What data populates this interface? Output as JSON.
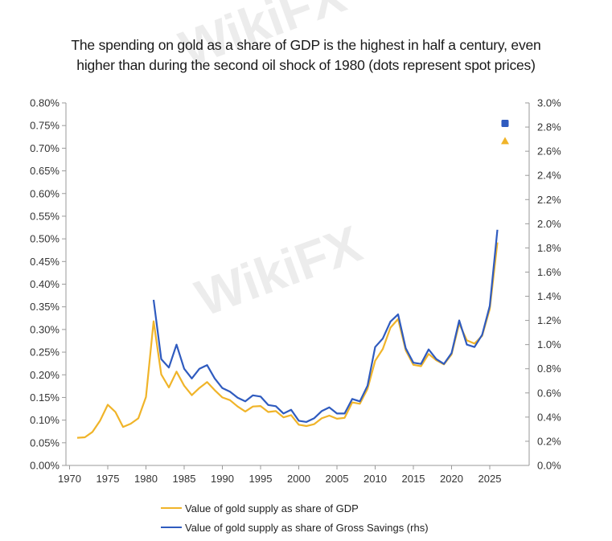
{
  "title_lines": [
    "The spending on gold as a share of GDP is the highest in half a century, even",
    "higher than during the second oil shock of 1980 (dots represent spot prices)"
  ],
  "watermark": "WikiFX",
  "chart_data": {
    "type": "line",
    "title": "The spending on gold as a share of GDP is the highest in half a century, even higher than during the second oil shock of 1980 (dots represent spot prices)",
    "x_ticks": [
      "1970",
      "1975",
      "1980",
      "1985",
      "1990",
      "1995",
      "2000",
      "2005",
      "2010",
      "2015",
      "2020",
      "2025"
    ],
    "xlim": [
      1970,
      2030
    ],
    "y_left": {
      "ylim": [
        0,
        0.8
      ],
      "ticks": [
        "0.00%",
        "0.05%",
        "0.10%",
        "0.15%",
        "0.20%",
        "0.25%",
        "0.30%",
        "0.35%",
        "0.40%",
        "0.45%",
        "0.50%",
        "0.55%",
        "0.60%",
        "0.65%",
        "0.70%",
        "0.75%",
        "0.80%"
      ]
    },
    "y_right": {
      "ylim": [
        0,
        3.0
      ],
      "ticks": [
        "0.0%",
        "0.2%",
        "0.4%",
        "0.6%",
        "0.8%",
        "1.0%",
        "1.2%",
        "1.4%",
        "1.6%",
        "1.8%",
        "2.0%",
        "2.2%",
        "2.4%",
        "2.6%",
        "2.8%",
        "3.0%"
      ]
    },
    "grid": false,
    "legend_position": "bottom",
    "series": [
      {
        "name": "Value of gold supply as share of GDP",
        "axis": "left",
        "color": "#F0B429",
        "x": [
          1971,
          1972,
          1973,
          1974,
          1975,
          1976,
          1977,
          1978,
          1979,
          1980,
          1981,
          1982,
          1983,
          1984,
          1985,
          1986,
          1987,
          1988,
          1989,
          1990,
          1991,
          1992,
          1993,
          1994,
          1995,
          1996,
          1997,
          1998,
          1999,
          2000,
          2001,
          2002,
          2003,
          2004,
          2005,
          2006,
          2007,
          2008,
          2009,
          2010,
          2011,
          2012,
          2013,
          2014,
          2015,
          2016,
          2017,
          2018,
          2019,
          2020,
          2021,
          2022,
          2023,
          2024,
          2025,
          2026
        ],
        "values": [
          0.061,
          0.062,
          0.074,
          0.099,
          0.134,
          0.118,
          0.085,
          0.092,
          0.104,
          0.151,
          0.318,
          0.201,
          0.172,
          0.207,
          0.176,
          0.155,
          0.171,
          0.184,
          0.166,
          0.15,
          0.144,
          0.13,
          0.119,
          0.13,
          0.131,
          0.118,
          0.12,
          0.106,
          0.111,
          0.09,
          0.087,
          0.091,
          0.104,
          0.11,
          0.103,
          0.105,
          0.139,
          0.136,
          0.169,
          0.231,
          0.257,
          0.304,
          0.323,
          0.254,
          0.222,
          0.219,
          0.246,
          0.232,
          0.223,
          0.245,
          0.313,
          0.276,
          0.269,
          0.286,
          0.345,
          0.492
        ]
      },
      {
        "name": "Value of gold supply as share of Gross Savings (rhs)",
        "axis": "right",
        "color": "#2F5BBF",
        "x": [
          1981,
          1982,
          1983,
          1984,
          1985,
          1986,
          1987,
          1988,
          1989,
          1990,
          1991,
          1992,
          1993,
          1994,
          1995,
          1996,
          1997,
          1998,
          1999,
          2000,
          2001,
          2002,
          2003,
          2004,
          2005,
          2006,
          2007,
          2008,
          2009,
          2010,
          2011,
          2012,
          2013,
          2014,
          2015,
          2016,
          2017,
          2018,
          2019,
          2020,
          2021,
          2022,
          2023,
          2024,
          2025,
          2026
        ],
        "values": [
          1.37,
          0.88,
          0.81,
          1.0,
          0.8,
          0.72,
          0.8,
          0.83,
          0.72,
          0.64,
          0.61,
          0.56,
          0.53,
          0.58,
          0.57,
          0.5,
          0.49,
          0.43,
          0.46,
          0.37,
          0.36,
          0.39,
          0.45,
          0.48,
          0.43,
          0.43,
          0.55,
          0.53,
          0.66,
          0.98,
          1.05,
          1.19,
          1.25,
          0.97,
          0.85,
          0.84,
          0.96,
          0.88,
          0.84,
          0.93,
          1.2,
          1.0,
          0.98,
          1.08,
          1.32,
          1.95
        ]
      }
    ],
    "spot_points": [
      {
        "series": "Value of gold supply as share of Gross Savings (rhs)",
        "axis": "right",
        "x": 2027,
        "value": 2.83,
        "marker": "square",
        "color": "#2F5BBF"
      },
      {
        "series": "Value of gold supply as share of GDP",
        "axis": "left",
        "x": 2027,
        "value": 0.716,
        "marker": "triangle",
        "color": "#F0B429"
      }
    ]
  }
}
